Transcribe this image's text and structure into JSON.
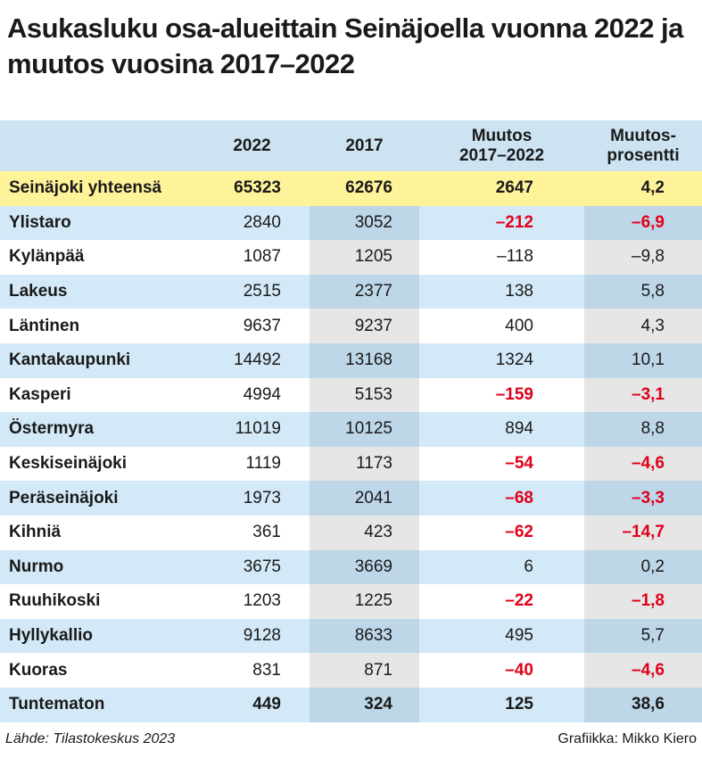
{
  "header": {
    "title": "Asukasluku osa-alueittain Seinäjoella vuonna 2022 ja muutos vuosina 2017–2022"
  },
  "table": {
    "columns": [
      "",
      "2022",
      "2017",
      "Muutos\n2017–2022",
      "Muutos-\nprosentti"
    ],
    "rows": [
      {
        "cells": [
          "Seinäjoki yhteensä",
          "65323",
          "62676",
          "2647",
          "4,2"
        ],
        "bold": true,
        "background": "#fff39a"
      },
      {
        "cells": [
          "Ylistaro",
          "2840",
          "3052",
          "–212",
          "–6,9"
        ],
        "change_color": "#e2001a"
      },
      {
        "cells": [
          "Kylänpää",
          "1087",
          "1205",
          "–118",
          "–9,8"
        ]
      },
      {
        "cells": [
          "Lakeus",
          "2515",
          "2377",
          "138",
          "5,8"
        ]
      },
      {
        "cells": [
          "Läntinen",
          "9637",
          "9237",
          "400",
          "4,3"
        ]
      },
      {
        "cells": [
          "Kantakaupunki",
          "14492",
          "13168",
          "1324",
          "10,1"
        ]
      },
      {
        "cells": [
          "Kasperi",
          "4994",
          "5153",
          "–159",
          "–3,1"
        ],
        "change_color": "#e2001a"
      },
      {
        "cells": [
          "Östermyra",
          "11019",
          "10125",
          "894",
          "8,8"
        ]
      },
      {
        "cells": [
          "Keskiseinäjoki",
          "1119",
          "1173",
          "–54",
          "–4,6"
        ],
        "change_color": "#e2001a"
      },
      {
        "cells": [
          "Peräseinäjoki",
          "1973",
          "2041",
          "–68",
          "–3,3"
        ],
        "change_color": "#e2001a"
      },
      {
        "cells": [
          "Kihniä",
          "361",
          "423",
          "–62",
          "–14,7"
        ],
        "change_color": "#e2001a"
      },
      {
        "cells": [
          "Nurmo",
          "3675",
          "3669",
          "6",
          "0,2"
        ]
      },
      {
        "cells": [
          "Ruuhikoski",
          "1203",
          "1225",
          "–22",
          "–1,8"
        ],
        "change_color": "#e2001a"
      },
      {
        "cells": [
          "Hyllykallio",
          "9128",
          "8633",
          "495",
          "5,7"
        ]
      },
      {
        "cells": [
          "Kuoras",
          "831",
          "871",
          "–40",
          "–4,6"
        ],
        "change_color": "#e2001a"
      },
      {
        "cells": [
          "Tuntematon",
          "449",
          "324",
          "125",
          "38,6"
        ],
        "bold": true
      }
    ]
  },
  "footer": {
    "source": "Lähde: Tilastokeskus 2023",
    "credit": "Grafiikka: Mikko Kiero"
  }
}
